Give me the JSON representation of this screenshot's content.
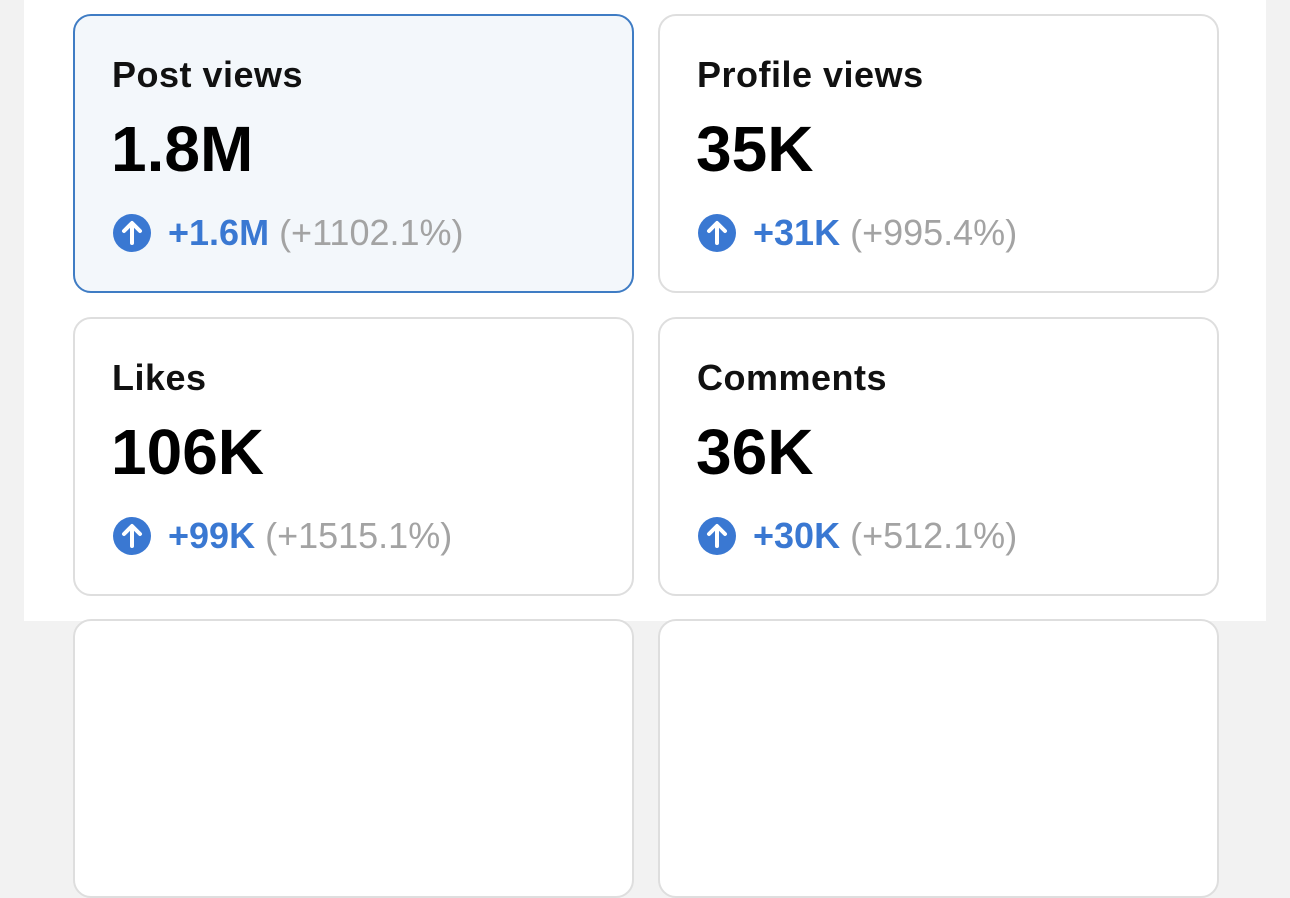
{
  "cards": [
    {
      "label": "Post views",
      "value": "1.8M",
      "change": "+1.6M",
      "percent": "(+1102.1%)",
      "selected": true
    },
    {
      "label": "Profile views",
      "value": "35K",
      "change": "+31K",
      "percent": "(+995.4%)",
      "selected": false
    },
    {
      "label": "Likes",
      "value": "106K",
      "change": "+99K",
      "percent": "(+1515.1%)",
      "selected": false
    },
    {
      "label": "Comments",
      "value": "36K",
      "change": "+30K",
      "percent": "(+512.1%)",
      "selected": false
    }
  ]
}
